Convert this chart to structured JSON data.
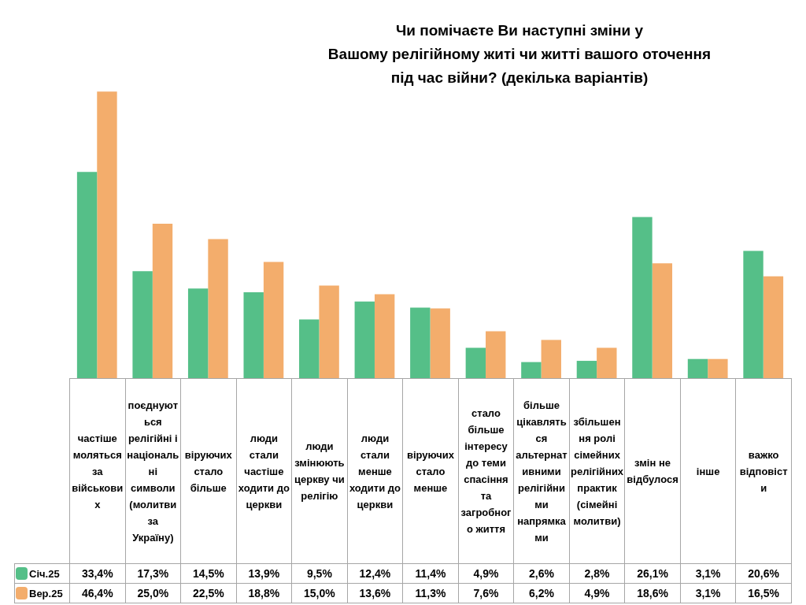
{
  "chart_data": {
    "type": "bar",
    "title": "Чи помічаєте Ви наступні зміни у\nВашому релігійному житі чи житті вашого оточення\nпід час війни? (декілька варіантів)",
    "categories": [
      "частіше моляться за військових",
      "поєднуються релігійні і національні символи (молитви за Україну)",
      "віруючих стало більше",
      "люди стали частіше ходити до церкви",
      "люди змінюють церкву чи релігію",
      "люди стали менше ходити до церкви",
      "віруючих стало менше",
      "стало більше інтересу до теми спасіння та загробного життя",
      "більше цікавляться альтернативними релігійними напрямками",
      "збільшення ролі сімейних релігійних практик (сімейні молитви)",
      "змін не відбулося",
      "інше",
      "важко відповісти"
    ],
    "series": [
      {
        "name": "Січ.25",
        "color": "#55bf88",
        "values": [
          33.4,
          17.3,
          14.5,
          13.9,
          9.5,
          12.4,
          11.4,
          4.9,
          2.6,
          2.8,
          26.1,
          3.1,
          20.6
        ],
        "value_labels": [
          "33,4%",
          "17,3%",
          "14,5%",
          "13,9%",
          "9,5%",
          "12,4%",
          "11,4%",
          "4,9%",
          "2,6%",
          "2,8%",
          "26,1%",
          "3,1%",
          "20,6%"
        ]
      },
      {
        "name": "Вер.25",
        "color": "#f3ad6c",
        "values": [
          46.4,
          25.0,
          22.5,
          18.8,
          15.0,
          13.6,
          11.3,
          7.6,
          6.2,
          4.9,
          18.6,
          3.1,
          16.5
        ],
        "value_labels": [
          "46,4%",
          "25,0%",
          "22,5%",
          "18,8%",
          "15,0%",
          "13,6%",
          "11,3%",
          "7,6%",
          "6,2%",
          "4,9%",
          "18,6%",
          "3,1%",
          "16,5%"
        ]
      }
    ],
    "legend": "bottom"
  }
}
